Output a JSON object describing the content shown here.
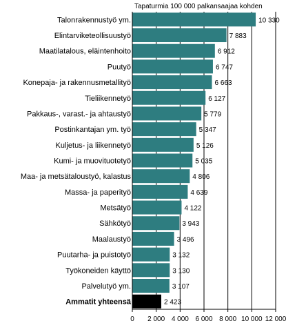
{
  "chart_data": {
    "type": "bar",
    "orientation": "horizontal",
    "title": "Tapaturmia 100 000 palkansaajaa kohden",
    "categories": [
      "Talonrakennustyö ym.",
      "Elintarviketeollisuustyö",
      "Maatilatalous, eläintenhoito",
      "Puutyö",
      "Konepaja- ja rakennusmetallityö",
      "Tieliikennetyö",
      "Pakkaus-, varast.- ja ahtaustyö",
      "Postinkantajan ym. työ",
      "Kuljetus- ja liikennetyö",
      "Kumi- ja muovituotetyö",
      "Maa- ja metsätaloustyö, kalastus",
      "Massa- ja paperityö",
      "Metsätyö",
      "Sähkötyö",
      "Maalaustyö",
      "Puutarha- ja puistotyö",
      "Työkoneiden käyttö",
      "Palvelutyö ym.",
      "Ammatit yhteensä"
    ],
    "values": [
      10330,
      7883,
      6912,
      6747,
      6663,
      6127,
      5779,
      5347,
      5126,
      5035,
      4806,
      4639,
      4122,
      3943,
      3496,
      3132,
      3130,
      3107,
      2423
    ],
    "value_labels": [
      "10 330",
      "7 883",
      "6 912",
      "6 747",
      "6 663",
      "6 127",
      "5 779",
      "5 347",
      "5 126",
      "5 035",
      "4 806",
      "4 639",
      "4 122",
      "3 943",
      "3 496",
      "3 132",
      "3 130",
      "3 107",
      "2 423"
    ],
    "highlight_index": 18,
    "xlim": [
      0,
      12000
    ],
    "xticks": [
      0,
      2000,
      4000,
      6000,
      8000,
      10000,
      12000
    ],
    "xtick_labels": [
      "0",
      "2 000",
      "4 000",
      "6 000",
      "8 000",
      "10 000",
      "12 000"
    ],
    "grid": "vertical",
    "colors": {
      "bar": "#2e7d80",
      "highlight": "#000000",
      "grid": "#000000"
    }
  }
}
